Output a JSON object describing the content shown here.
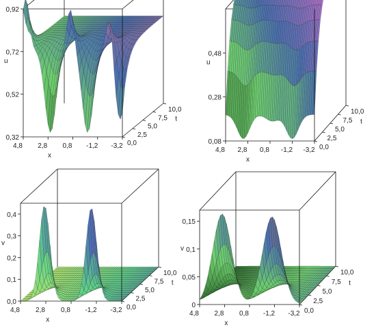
{
  "chart_data": [
    {
      "type": "surface",
      "title": "",
      "xlabel": "x",
      "ylabel": "t",
      "zlabel": "u",
      "x_ticks": [
        "4,8",
        "2,8",
        "0,8",
        "-1,2",
        "-3,2"
      ],
      "t_ticks": [
        "0,0",
        "2,5",
        "5,0",
        "7,5",
        "10,0"
      ],
      "z_ticks": [
        "0,32",
        "0,52",
        "0,72",
        "0,92"
      ],
      "xlim": [
        -3.2,
        4.8
      ],
      "tlim": [
        0,
        10
      ],
      "zlim": [
        0.32,
        0.92
      ],
      "surface": {
        "baseline": 0.73,
        "peaks": [
          {
            "x": 4.6,
            "height": 0.97
          },
          {
            "x": 1.0,
            "height": 0.92
          },
          {
            "x": -2.2,
            "height": 0.92
          }
        ],
        "troughs": [
          {
            "x": 2.6,
            "depth": 0.34
          },
          {
            "x": -0.4,
            "depth": 0.34
          },
          {
            "x": -3.0,
            "depth": 0.4
          }
        ],
        "decays_with_t": true,
        "colormap": [
          "#2d6b2d",
          "#6fd06f",
          "#4a6fb0",
          "#b0709a"
        ]
      }
    },
    {
      "type": "surface",
      "title": "",
      "xlabel": "x",
      "ylabel": "t",
      "zlabel": "u",
      "x_ticks": [
        "4,8",
        "2,8",
        "0,8",
        "-1,2",
        "-3,2"
      ],
      "t_ticks": [
        "0,0",
        "2,5",
        "5,0",
        "7,5",
        "10,0"
      ],
      "z_ticks": [
        "0,08",
        "0,28",
        "0,48"
      ],
      "xlim": [
        -3.2,
        4.8
      ],
      "tlim": [
        0,
        10
      ],
      "zlim": [
        0.08,
        0.68
      ],
      "surface": {
        "baseline_t0": 0.2,
        "rises_with_t_to": 0.78,
        "troughs_t0": [
          {
            "x": 3.2,
            "value": 0.09
          },
          {
            "x": 0.6,
            "value": 0.17
          },
          {
            "x": -1.2,
            "value": 0.09
          }
        ],
        "colormap": [
          "#2d6b2d",
          "#6fd06f",
          "#4a6fb0",
          "#b070c8"
        ]
      }
    },
    {
      "type": "surface",
      "title": "",
      "xlabel": "x",
      "ylabel": "t",
      "zlabel": "v",
      "x_ticks": [
        "4,8",
        "2,8",
        "0,8",
        "-1,2",
        "-3,2"
      ],
      "t_ticks": [
        "0,0",
        "2,5",
        "5,0",
        "7,5",
        "10,0"
      ],
      "z_ticks": [
        "0,0",
        "0,1",
        "0,2",
        "0,3",
        "0,4"
      ],
      "xlim": [
        -3.2,
        4.8
      ],
      "tlim": [
        0,
        10
      ],
      "zlim": [
        0.0,
        0.45
      ],
      "surface": {
        "peaks": [
          {
            "x": 2.9,
            "height": 0.44
          },
          {
            "x": -0.8,
            "height": 0.43
          }
        ],
        "floor": 0.0,
        "decays_with_t": true,
        "colormap": [
          "#b0e870",
          "#5fd08a",
          "#4b6ab8",
          "#c07040"
        ]
      }
    },
    {
      "type": "surface",
      "title": "",
      "xlabel": "x",
      "ylabel": "t",
      "zlabel": "v",
      "x_ticks": [
        "4,8",
        "2,8",
        "0,8",
        "-1,2",
        "-3,2"
      ],
      "t_ticks": [
        "0,0",
        "2,5",
        "5,0",
        "7,5",
        "10,0"
      ],
      "z_ticks": [
        "0",
        "0,05",
        "0,1",
        "0,15"
      ],
      "xlim": [
        -3.2,
        4.8
      ],
      "tlim": [
        0,
        10
      ],
      "zlim": [
        0.0,
        0.17
      ],
      "surface": {
        "peaks": [
          {
            "x": 3.0,
            "height": 0.163
          },
          {
            "x": -1.0,
            "height": 0.158
          }
        ],
        "saddle": {
          "x": 1.0,
          "value": 0.1
        },
        "decays_with_t": true,
        "colormap": [
          "#2d6b2d",
          "#6fd06f",
          "#4a6fb0",
          "#b07040"
        ]
      }
    }
  ]
}
